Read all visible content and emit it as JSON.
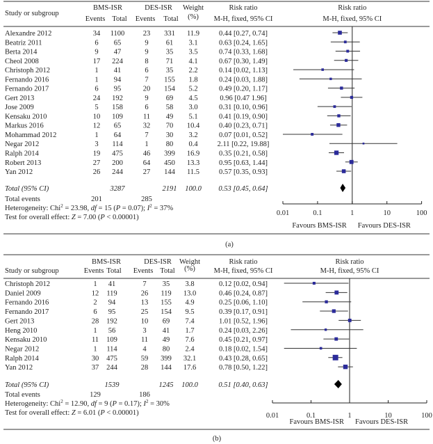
{
  "chart_data": [
    {
      "type": "forest",
      "caption": "(a)",
      "headers": {
        "study": "Study or subgroup",
        "group1": "BMS-ISR",
        "group2": "DES-ISR",
        "events": "Events",
        "total": "Total",
        "weight": "Weight",
        "weight_unit": "(%)",
        "rr": "Risk ratio",
        "method": "M-H, fixed, 95% CI"
      },
      "studies": [
        {
          "name": "Alexandre 2012",
          "e1": 34,
          "n1": 1100,
          "e2": 23,
          "n2": 331,
          "weight": 11.9,
          "rr": 0.44,
          "lo": 0.27,
          "hi": 0.74,
          "rr_text": "0.44 [0.27, 0.74]"
        },
        {
          "name": "Beatriz 2011",
          "e1": 6,
          "n1": 65,
          "e2": 9,
          "n2": 61,
          "weight": 3.1,
          "rr": 0.63,
          "lo": 0.24,
          "hi": 1.65,
          "rr_text": "0.63 [0.24, 1.65]"
        },
        {
          "name": "Berta 2014",
          "e1": 9,
          "n1": 47,
          "e2": 9,
          "n2": 35,
          "weight": 3.5,
          "rr": 0.74,
          "lo": 0.33,
          "hi": 1.68,
          "rr_text": "0.74 [0.33, 1.68]"
        },
        {
          "name": "Cheol 2008",
          "e1": 17,
          "n1": 224,
          "e2": 8,
          "n2": 71,
          "weight": 4.1,
          "rr": 0.67,
          "lo": 0.3,
          "hi": 1.49,
          "rr_text": "0.67 [0.30, 1.49]"
        },
        {
          "name": "Christoph 2012",
          "e1": 1,
          "n1": 41,
          "e2": 6,
          "n2": 35,
          "weight": 2.2,
          "rr": 0.14,
          "lo": 0.02,
          "hi": 1.13,
          "rr_text": "0.14 [0.02, 1.13]"
        },
        {
          "name": "Fernando 2016",
          "e1": 1,
          "n1": 94,
          "e2": 7,
          "n2": 155,
          "weight": 1.8,
          "rr": 0.24,
          "lo": 0.03,
          "hi": 1.88,
          "rr_text": "0.24 [0.03, 1.88]"
        },
        {
          "name": "Fernando 2017",
          "e1": 6,
          "n1": 95,
          "e2": 20,
          "n2": 154,
          "weight": 5.2,
          "rr": 0.49,
          "lo": 0.2,
          "hi": 1.17,
          "rr_text": "0.49 [0.20, 1.17]"
        },
        {
          "name": "Gert 2013",
          "e1": 24,
          "n1": 192,
          "e2": 9,
          "n2": 69,
          "weight": 4.5,
          "rr": 0.96,
          "lo": 0.47,
          "hi": 1.96,
          "rr_text": "0.96 [0.47 1.96]"
        },
        {
          "name": "Jose 2009",
          "e1": 5,
          "n1": 158,
          "e2": 6,
          "n2": 58,
          "weight": 3.0,
          "rr": 0.31,
          "lo": 0.1,
          "hi": 0.96,
          "rr_text": "0.31 [0.10, 0.96]"
        },
        {
          "name": "Kensaku 2010",
          "e1": 10,
          "n1": 109,
          "e2": 11,
          "n2": 49,
          "weight": 5.1,
          "rr": 0.41,
          "lo": 0.19,
          "hi": 0.9,
          "rr_text": "0.41 [0.19, 0.90]"
        },
        {
          "name": "Markus 2016",
          "e1": 12,
          "n1": 65,
          "e2": 32,
          "n2": 70,
          "weight": 10.4,
          "rr": 0.4,
          "lo": 0.23,
          "hi": 0.71,
          "rr_text": "0.40 [0.23, 0.71]"
        },
        {
          "name": "Mohammad 2012",
          "e1": 1,
          "n1": 64,
          "e2": 7,
          "n2": 30,
          "weight": 3.2,
          "rr": 0.07,
          "lo": 0.01,
          "hi": 0.52,
          "rr_text": "0.07 [0.01, 0.52]"
        },
        {
          "name": "Negar 2012",
          "e1": 3,
          "n1": 114,
          "e2": 1,
          "n2": 80,
          "weight": 0.4,
          "rr": 2.11,
          "lo": 0.22,
          "hi": 19.88,
          "rr_text": "2.11 [0.22, 19.88]"
        },
        {
          "name": "Ralph 2014",
          "e1": 19,
          "n1": 475,
          "e2": 46,
          "n2": 399,
          "weight": 16.9,
          "rr": 0.35,
          "lo": 0.21,
          "hi": 0.58,
          "rr_text": "0.35 [0.21, 0.58]"
        },
        {
          "name": "Robert 2013",
          "e1": 27,
          "n1": 200,
          "e2": 64,
          "n2": 450,
          "weight": 13.3,
          "rr": 0.95,
          "lo": 0.63,
          "hi": 1.44,
          "rr_text": "0.95 [0.63, 1.44]"
        },
        {
          "name": "Yan 2012",
          "e1": 26,
          "n1": 244,
          "e2": 27,
          "n2": 144,
          "weight": 11.5,
          "rr": 0.57,
          "lo": 0.35,
          "hi": 0.93,
          "rr_text": "0.57 [0.35, 0.93]"
        }
      ],
      "total": {
        "label": "Total (95% CI)",
        "n1": "3287",
        "n2": "2191",
        "weight": "100.0",
        "rr": 0.53,
        "lo": 0.45,
        "hi": 0.64,
        "rr_text": "0.53 [0.45, 0.64]"
      },
      "total_events": {
        "label": "Total events",
        "e1": "201",
        "e2": "285"
      },
      "heterogeneity": [
        {
          "t": "Heterogeneity: Chi"
        },
        {
          "t": "2",
          "sup": true
        },
        {
          "t": " = 23.98, "
        },
        {
          "t": "df",
          "it": true
        },
        {
          "t": " = 15 ("
        },
        {
          "t": "P",
          "it": true
        },
        {
          "t": " = 0.07); "
        },
        {
          "t": "I",
          "it": true
        },
        {
          "t": "2",
          "sup": true
        },
        {
          "t": " = 37%"
        }
      ],
      "overall_effect": [
        {
          "t": "Test for overall effect: "
        },
        {
          "t": "Z",
          "it": true
        },
        {
          "t": " = 7.00 ("
        },
        {
          "t": "P",
          "it": true
        },
        {
          "t": " < 0.00001)"
        }
      ],
      "x_scale": "log",
      "xlim": [
        0.01,
        100
      ],
      "xticks": [
        0.01,
        0.1,
        1,
        10,
        100
      ],
      "xtick_labels": [
        "0.01",
        "0.1",
        "1",
        "10",
        "100"
      ],
      "favours_left": "Favours BMS-ISR",
      "favours_right": "Favours DES-ISR"
    },
    {
      "type": "forest",
      "caption": "(b)",
      "headers": {
        "study": "Study or subgroup",
        "group1": "BMS-ISR",
        "group2": "DES-ISR",
        "events": "Events",
        "total": "Total",
        "weight": "Weight",
        "weight_unit": "(%)",
        "rr": "Risk ratio",
        "method": "M-H, fixed, 95% CI"
      },
      "studies": [
        {
          "name": "Christoph 2012",
          "e1": 1,
          "n1": 41,
          "e2": 7,
          "n2": 35,
          "weight": 3.8,
          "rr": 0.12,
          "lo": 0.02,
          "hi": 0.94,
          "rr_text": "0.12 [0.02, 0.94]"
        },
        {
          "name": "Daniel 2009",
          "e1": 12,
          "n1": 119,
          "e2": 26,
          "n2": 119,
          "weight": 13.0,
          "rr": 0.46,
          "lo": 0.24,
          "hi": 0.87,
          "rr_text": "0.46 [0.24, 0.87]"
        },
        {
          "name": "Fernando 2016",
          "e1": 2,
          "n1": 94,
          "e2": 13,
          "n2": 155,
          "weight": 4.9,
          "rr": 0.25,
          "lo": 0.06,
          "hi": 1.1,
          "rr_text": "0.25 [0.06, 1.10]"
        },
        {
          "name": "Fernando 2017",
          "e1": 6,
          "n1": 95,
          "e2": 25,
          "n2": 154,
          "weight": 9.5,
          "rr": 0.39,
          "lo": 0.17,
          "hi": 0.91,
          "rr_text": "0.39 [0.17, 0.91]"
        },
        {
          "name": "Gert 2013",
          "e1": 28,
          "n1": 192,
          "e2": 10,
          "n2": 69,
          "weight": 7.4,
          "rr": 1.01,
          "lo": 0.52,
          "hi": 1.96,
          "rr_text": "1.01 [0.52, 1.96]"
        },
        {
          "name": "Heng 2010",
          "e1": 1,
          "n1": 56,
          "e2": 3,
          "n2": 41,
          "weight": 1.7,
          "rr": 0.24,
          "lo": 0.03,
          "hi": 2.26,
          "rr_text": "0.24 [0.03, 2.26]"
        },
        {
          "name": "Kensaku 2010",
          "e1": 11,
          "n1": 109,
          "e2": 11,
          "n2": 49,
          "weight": 7.6,
          "rr": 0.45,
          "lo": 0.21,
          "hi": 0.97,
          "rr_text": "0.45 [0.21, 0.97]"
        },
        {
          "name": "Negar 2012",
          "e1": 1,
          "n1": 114,
          "e2": 4,
          "n2": 80,
          "weight": 2.4,
          "rr": 0.18,
          "lo": 0.02,
          "hi": 1.54,
          "rr_text": "0.18 [0.02, 1.54]"
        },
        {
          "name": "Ralph 2014",
          "e1": 30,
          "n1": 475,
          "e2": 59,
          "n2": 399,
          "weight": 32.1,
          "rr": 0.43,
          "lo": 0.28,
          "hi": 0.65,
          "rr_text": "0.43 [0.28, 0.65]"
        },
        {
          "name": "Yan 2012",
          "e1": 37,
          "n1": 244,
          "e2": 28,
          "n2": 144,
          "weight": 17.6,
          "rr": 0.78,
          "lo": 0.5,
          "hi": 1.22,
          "rr_text": "0.78 [0.50, 1.22]"
        }
      ],
      "total": {
        "label": "Total (95% CI)",
        "n1": "1539",
        "n2": "1245",
        "weight": "100.0",
        "rr": 0.51,
        "lo": 0.4,
        "hi": 0.63,
        "rr_text": "0.51 [0.40, 0.63]"
      },
      "total_events": {
        "label": "Total events",
        "e1": "129",
        "e2": "186"
      },
      "heterogeneity": [
        {
          "t": "Heterogeneity: Chi"
        },
        {
          "t": "2",
          "sup": true
        },
        {
          "t": " = 12.90, "
        },
        {
          "t": "df",
          "it": true
        },
        {
          "t": " = 9 ("
        },
        {
          "t": "P",
          "it": true
        },
        {
          "t": " = 0.17); "
        },
        {
          "t": "I",
          "it": true
        },
        {
          "t": "2",
          "sup": true
        },
        {
          "t": " = 30%"
        }
      ],
      "overall_effect": [
        {
          "t": "Test for overall effect: "
        },
        {
          "t": "Z",
          "it": true
        },
        {
          "t": " = 6.01 ("
        },
        {
          "t": "P",
          "it": true
        },
        {
          "t": " < 0.00001)"
        }
      ],
      "x_scale": "log",
      "xlim": [
        0.01,
        100
      ],
      "xticks": [
        0.01,
        0.1,
        1,
        10,
        100
      ],
      "xtick_labels": [
        "0.01",
        "0.1",
        "1",
        "10",
        "100"
      ],
      "favours_left": "Favours BMS-ISR",
      "favours_right": "Favours DES-ISR"
    }
  ]
}
